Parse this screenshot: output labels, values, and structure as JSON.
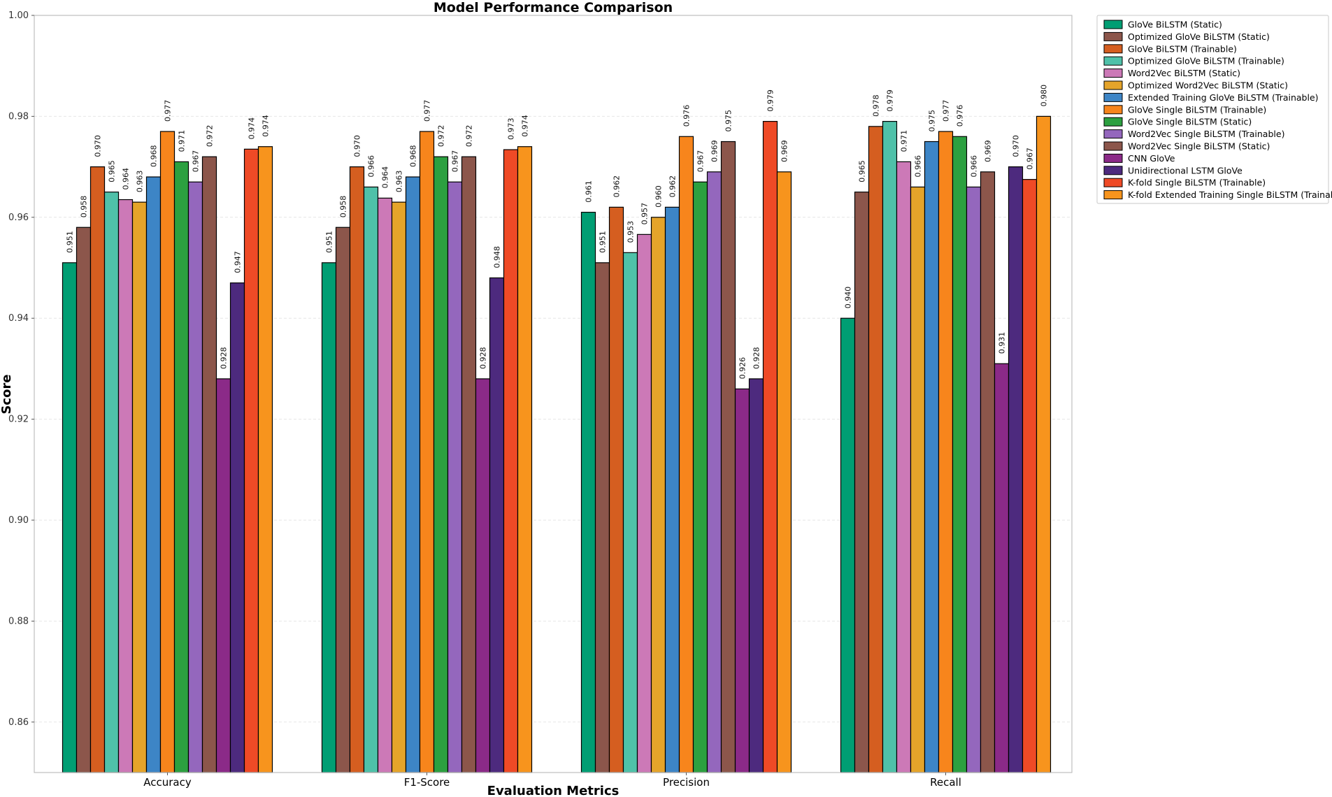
{
  "chart_data": {
    "type": "bar",
    "title": "Model Performance Comparison",
    "xlabel": "Evaluation Metrics",
    "ylabel": "Score",
    "ylim": [
      0.85,
      1.0
    ],
    "yticks": [
      "0.86",
      "0.88",
      "0.90",
      "0.92",
      "0.94",
      "0.96",
      "0.98",
      "1.00"
    ],
    "grid": true,
    "legend_position": "outside-top-right",
    "categories": [
      "Accuracy",
      "F1-Score",
      "Precision",
      "Recall"
    ],
    "series": [
      {
        "name": "GloVe BiLSTM (Static)",
        "color": "#009E73",
        "values": [
          0.951,
          0.951,
          0.961,
          0.94
        ],
        "labels": [
          "0.951",
          "0.951",
          "0.961",
          "0.940"
        ]
      },
      {
        "name": "Optimized GloVe BiLSTM (Static)",
        "color": "#8C564B",
        "values": [
          0.958,
          0.958,
          0.951,
          0.965
        ],
        "labels": [
          "0.958",
          "0.958",
          "0.951",
          "0.965"
        ]
      },
      {
        "name": "GloVe BiLSTM (Trainable)",
        "color": "#D55E20",
        "values": [
          0.97,
          0.97,
          0.962,
          0.978
        ],
        "labels": [
          "0.970",
          "0.970",
          "0.962",
          "0.978"
        ]
      },
      {
        "name": "Optimized GloVe BiLSTM (Trainable)",
        "color": "#4FC1A9",
        "values": [
          0.965,
          0.966,
          0.953,
          0.979
        ],
        "labels": [
          "0.965",
          "0.966",
          "0.953",
          "0.979"
        ]
      },
      {
        "name": "Word2Vec BiLSTM (Static)",
        "color": "#CC79B7",
        "values": [
          0.9635,
          0.9638,
          0.9566,
          0.971
        ],
        "labels": [
          "0.964",
          "0.964",
          "0.957",
          "0.971"
        ]
      },
      {
        "name": "Optimized Word2Vec BiLSTM (Static)",
        "color": "#E5A42A",
        "values": [
          0.963,
          0.963,
          0.96,
          0.966
        ],
        "labels": [
          "0.963",
          "0.963",
          "0.960",
          "0.966"
        ]
      },
      {
        "name": "Extended Training GloVe BiLSTM (Trainable)",
        "color": "#3D85C6",
        "values": [
          0.968,
          0.968,
          0.962,
          0.975
        ],
        "labels": [
          "0.968",
          "0.968",
          "0.962",
          "0.975"
        ]
      },
      {
        "name": "GloVe Single BiLSTM (Trainable)",
        "color": "#F7851C",
        "values": [
          0.977,
          0.977,
          0.976,
          0.977
        ],
        "labels": [
          "0.977",
          "0.977",
          "0.976",
          "0.977"
        ]
      },
      {
        "name": "GloVe Single BiLSTM (Static)",
        "color": "#2CA040",
        "values": [
          0.971,
          0.972,
          0.967,
          0.976
        ],
        "labels": [
          "0.971",
          "0.972",
          "0.967",
          "0.976"
        ]
      },
      {
        "name": "Word2Vec Single BiLSTM (Trainable)",
        "color": "#9467BD",
        "values": [
          0.967,
          0.967,
          0.969,
          0.966
        ],
        "labels": [
          "0.967",
          "0.967",
          "0.969",
          "0.966"
        ]
      },
      {
        "name": "Word2Vec Single BiLSTM (Static)",
        "color": "#8C564B",
        "values": [
          0.972,
          0.972,
          0.975,
          0.969
        ],
        "labels": [
          "0.972",
          "0.972",
          "0.975",
          "0.969"
        ]
      },
      {
        "name": "CNN GloVe",
        "color": "#8B2A88",
        "values": [
          0.928,
          0.928,
          0.926,
          0.931
        ],
        "labels": [
          "0.928",
          "0.928",
          "0.926",
          "0.931"
        ]
      },
      {
        "name": "Unidirectional LSTM GloVe",
        "color": "#4D2A7E",
        "values": [
          0.947,
          0.948,
          0.928,
          0.97
        ],
        "labels": [
          "0.947",
          "0.948",
          "0.928",
          "0.970"
        ]
      },
      {
        "name": "K-fold Single BiLSTM (Trainable)",
        "color": "#EF4A26",
        "values": [
          0.9735,
          0.9734,
          0.979,
          0.9675
        ],
        "labels": [
          "0.974",
          "0.973",
          "0.979",
          "0.967"
        ]
      },
      {
        "name": "K-fold Extended Training Single BiLSTM (Trainable)",
        "color": "#F7941D",
        "values": [
          0.974,
          0.974,
          0.969,
          0.98
        ],
        "labels": [
          "0.974",
          "0.974",
          "0.969",
          "0.980"
        ]
      }
    ]
  }
}
